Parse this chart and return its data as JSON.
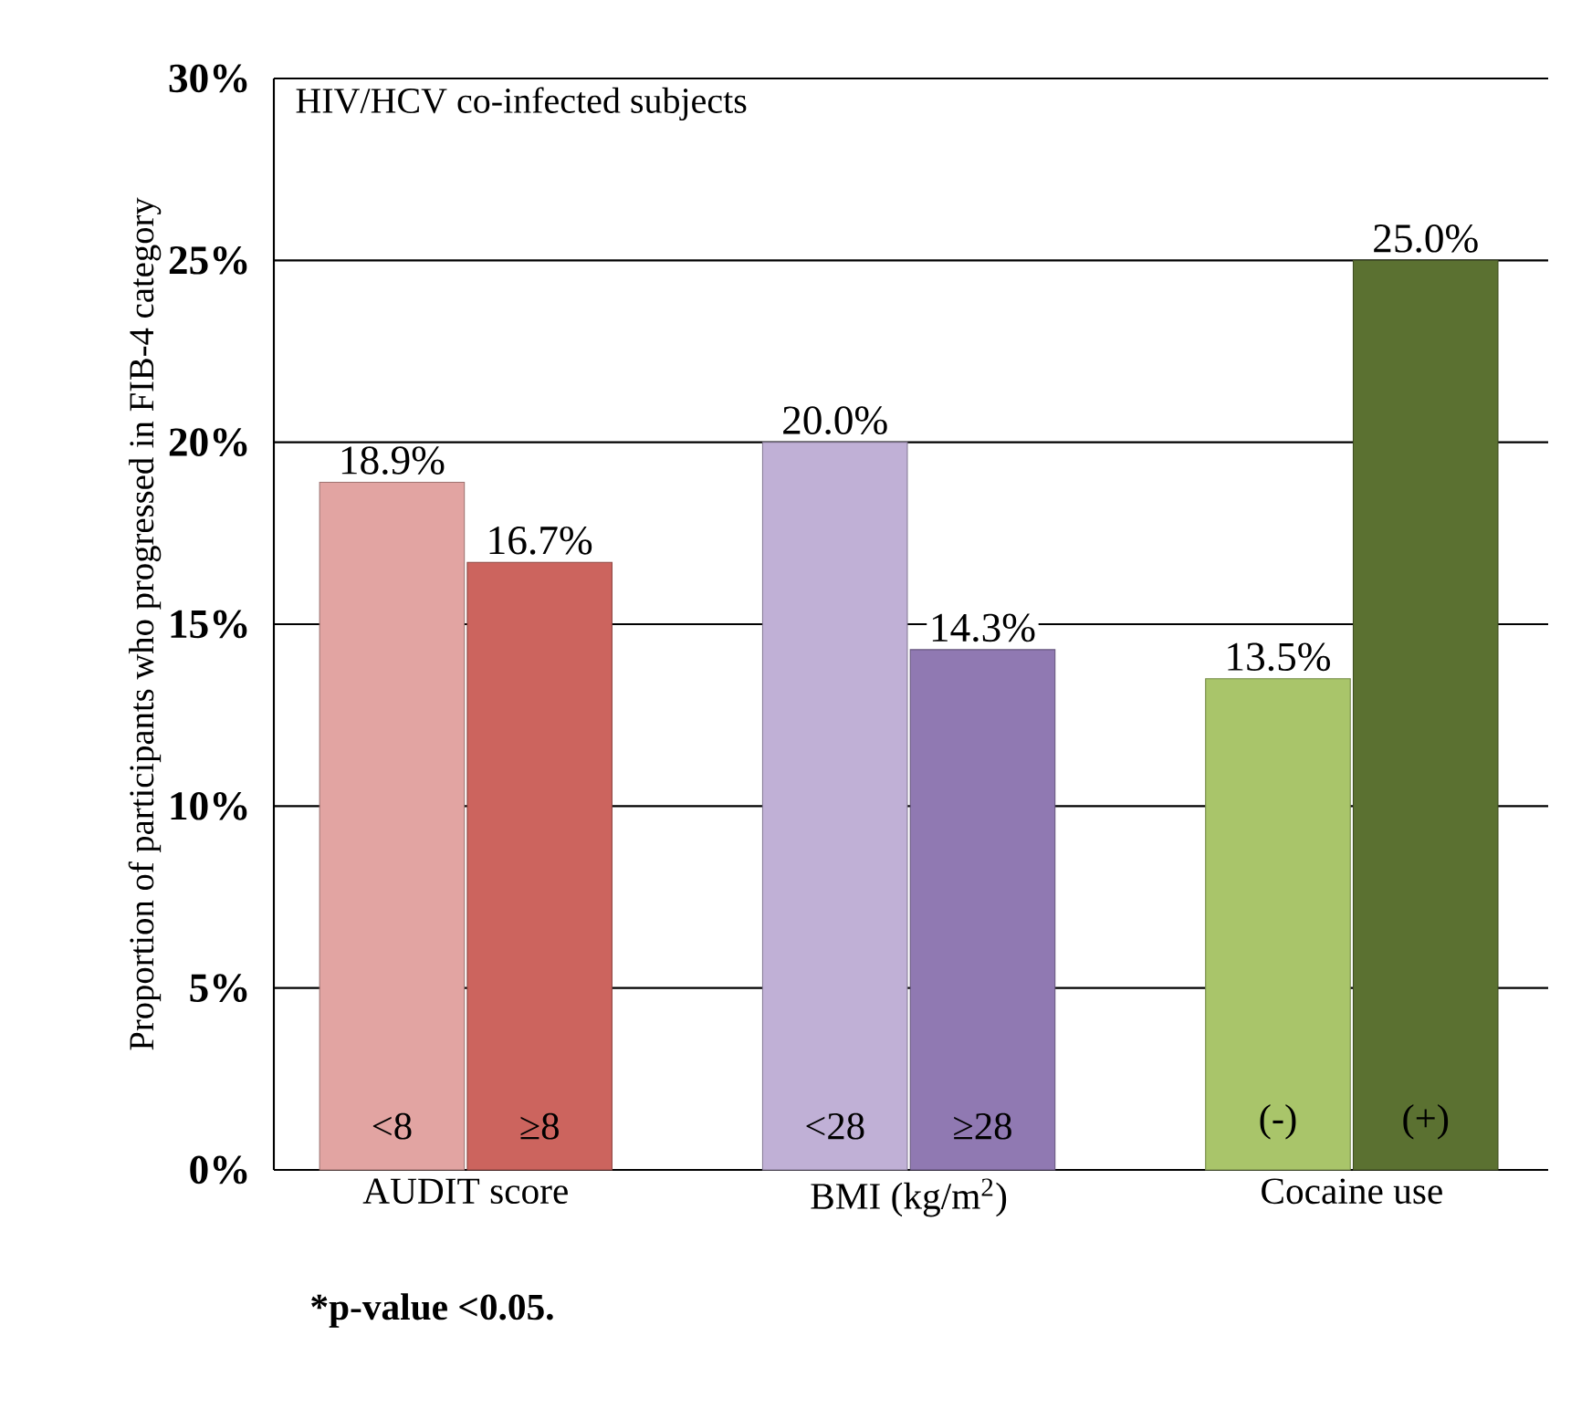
{
  "chart_data": {
    "type": "bar",
    "title": "HIV/HCV co-infected subjects",
    "ylabel": "Proportion of participants who progressed in FIB-4 category",
    "categories": [
      "<8",
      "≥8",
      "<28",
      "≥28",
      "(-)",
      "(+)"
    ],
    "values": [
      18.9,
      16.7,
      20.0,
      14.3,
      13.5,
      25.0
    ],
    "value_labels": [
      "18.9%",
      "16.7%",
      "20.0%",
      "14.3%",
      "13.5%",
      "25.0%"
    ],
    "colors": [
      "#e2a4a2",
      "#cc645e",
      "#c0b0d6",
      "#9079b2",
      "#a9c56a",
      "#5b7131"
    ],
    "ylim": [
      0,
      30
    ],
    "yticks": [
      {
        "value": 0,
        "label": "0%"
      },
      {
        "value": 5,
        "label": "5%"
      },
      {
        "value": 10,
        "label": "10%"
      },
      {
        "value": 15,
        "label": "15%"
      },
      {
        "value": 20,
        "label": "20%"
      },
      {
        "value": 25,
        "label": "25%"
      },
      {
        "value": 30,
        "label": "30%"
      }
    ],
    "grid": "y",
    "annotations": [
      "AUDIT score",
      "BMI (kg/m$^{2}$)",
      "Cocaine use",
      "*p-value <0.05."
    ]
  }
}
